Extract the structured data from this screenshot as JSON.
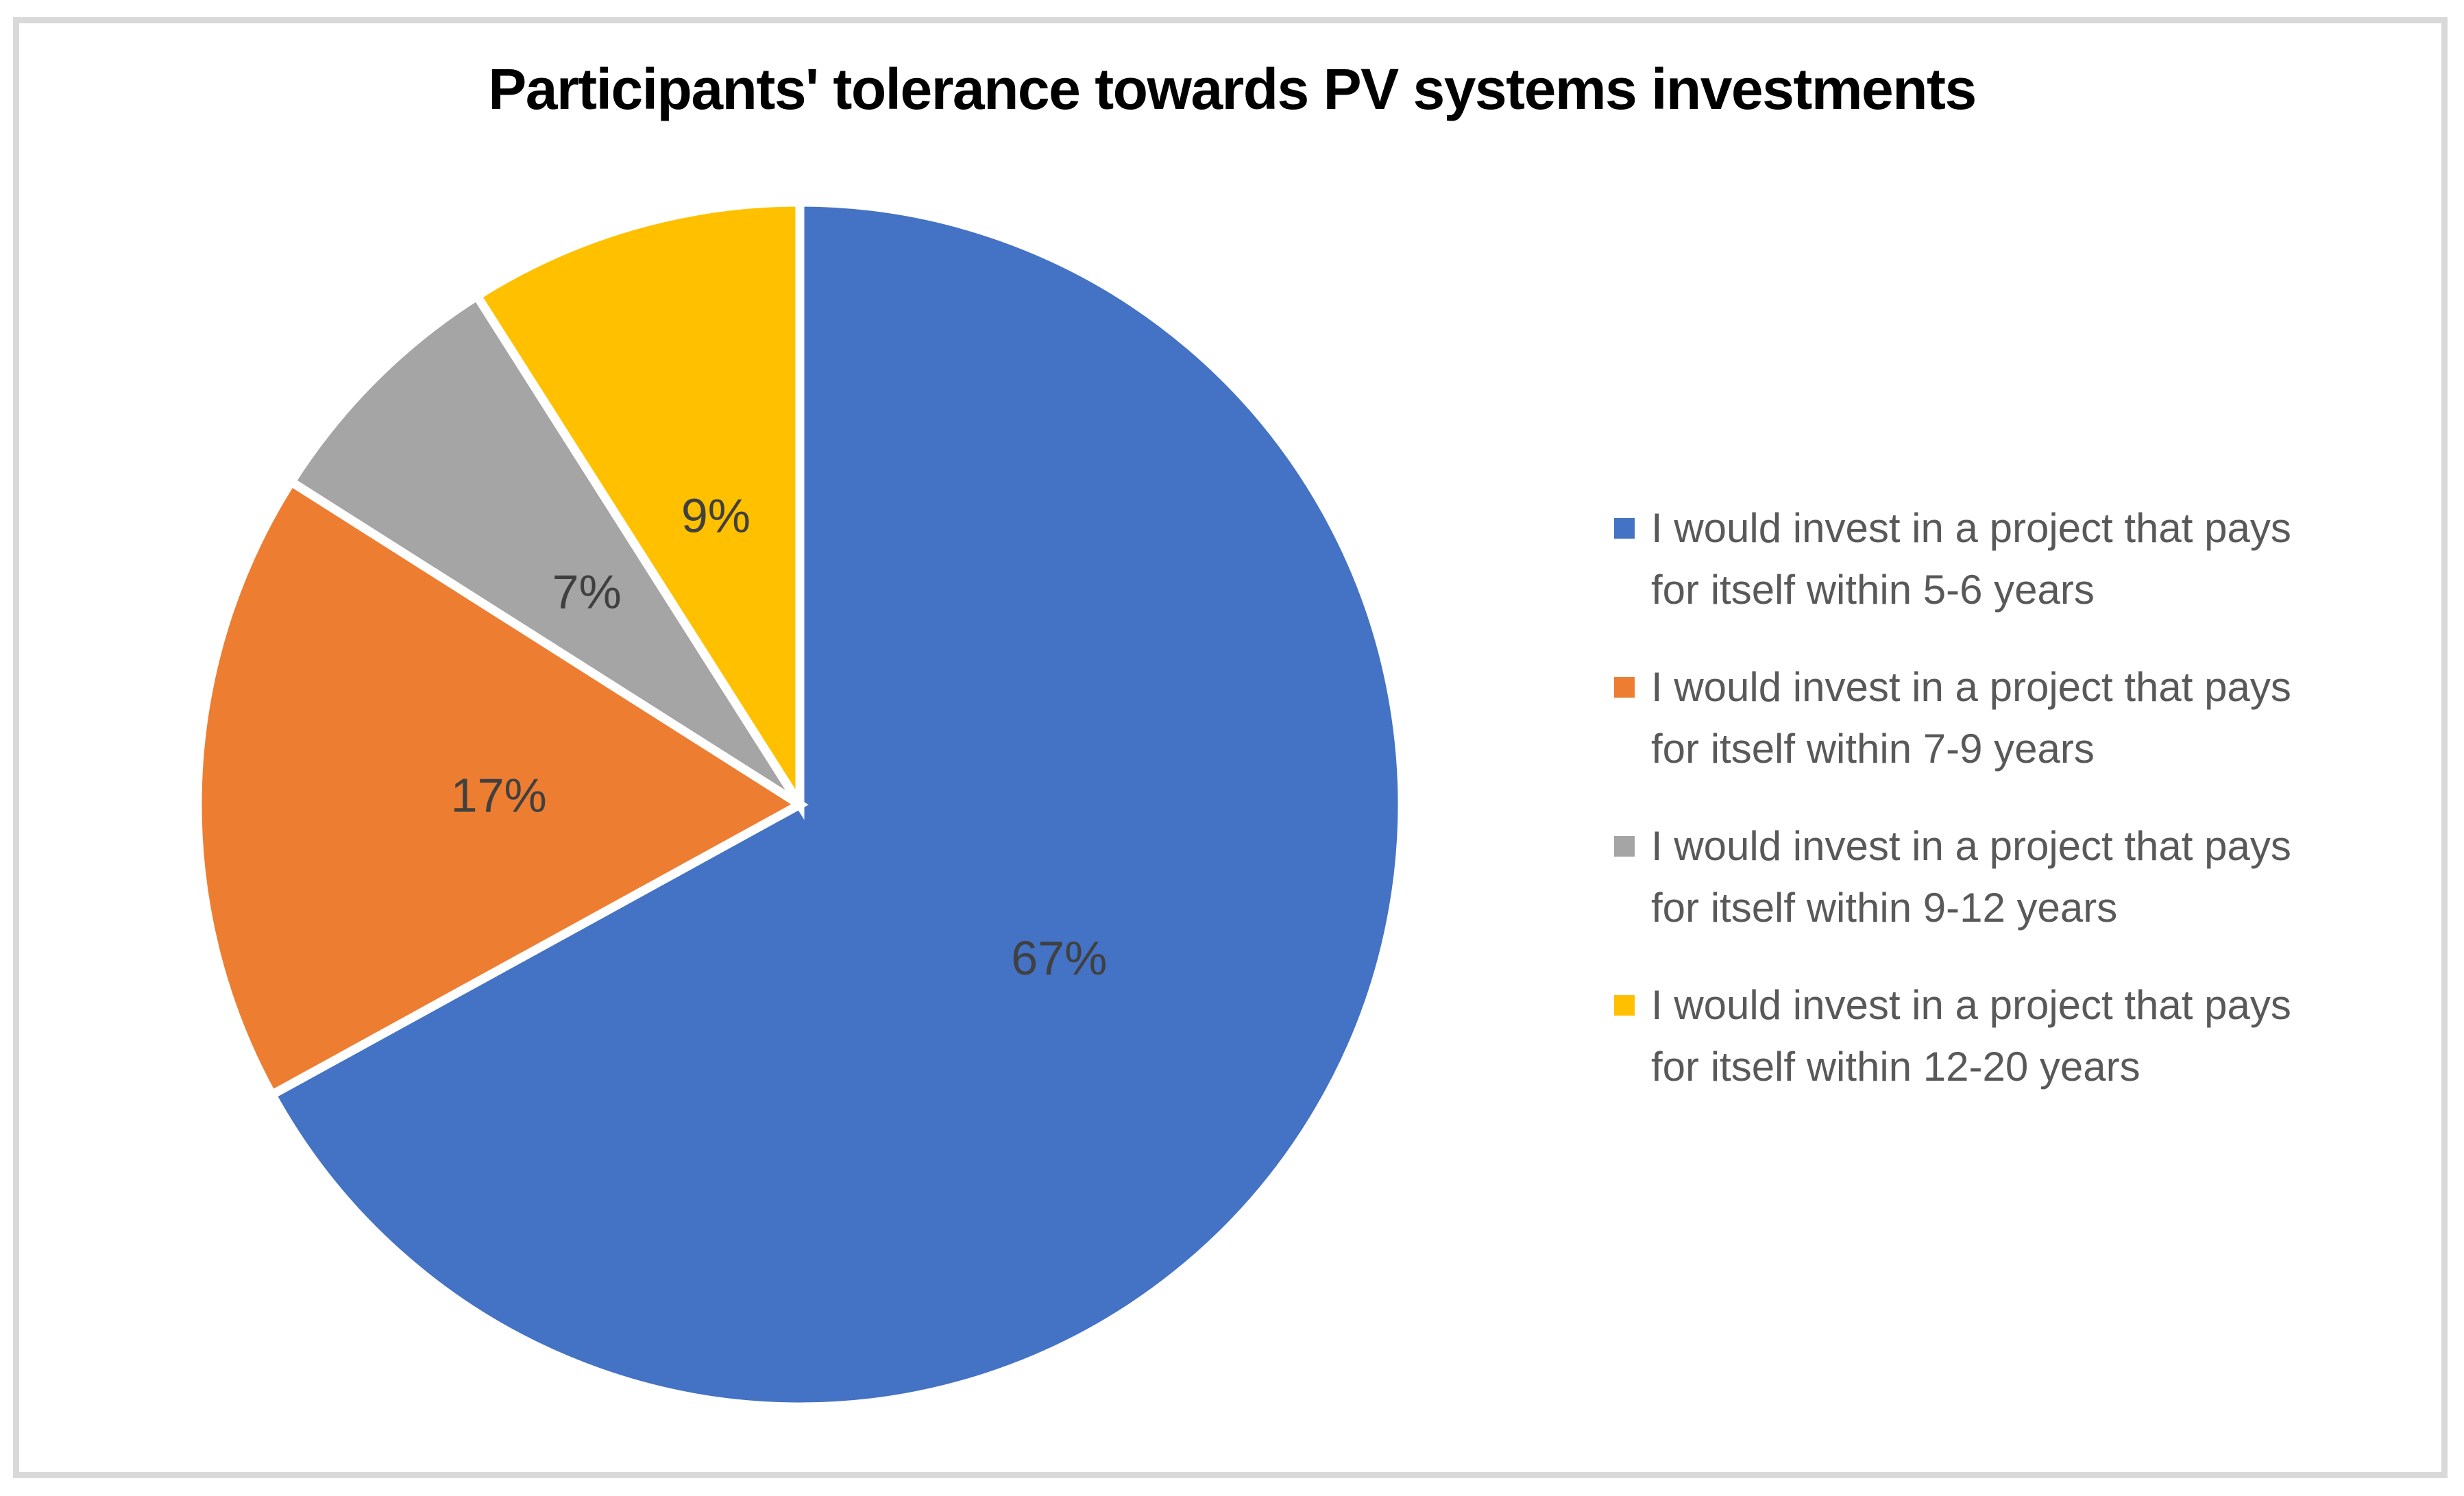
{
  "chart_data": {
    "type": "pie",
    "title": "Participants' tolerance towards PV systems investments",
    "categories": [
      "I would invest in a project that pays for itself within 5-6 years",
      "I would invest in a project that pays for itself within 7-9 years",
      "I would invest in a project that pays for itself within 9-12 years",
      "I would invest in a project that pays for itself within 12-20 years"
    ],
    "values": [
      67,
      17,
      7,
      9
    ],
    "data_labels": [
      "67%",
      "17%",
      "7%",
      "9%"
    ],
    "colors": [
      "#4472C4",
      "#ED7D31",
      "#A5A5A5",
      "#FFC000"
    ],
    "start_angle_deg": 0,
    "direction": "clockwise",
    "legend_position": "right",
    "legend_lines": [
      [
        "I would invest in a project that pays",
        "for itself within 5-6 years"
      ],
      [
        "I would invest in a project that pays",
        "for itself within 7-9 years"
      ],
      [
        "I would invest in a project that pays",
        "for itself within 9-12 years"
      ],
      [
        "I would invest in a project that pays",
        "for itself within 12-20 years"
      ]
    ]
  },
  "styles": {
    "background": "#FFFFFF",
    "frame_border_color": "#D9D9D9",
    "title_color": "#000000",
    "data_label_color": "#404040",
    "legend_text_color": "#595959",
    "slice_separator_color": "#FFFFFF"
  }
}
